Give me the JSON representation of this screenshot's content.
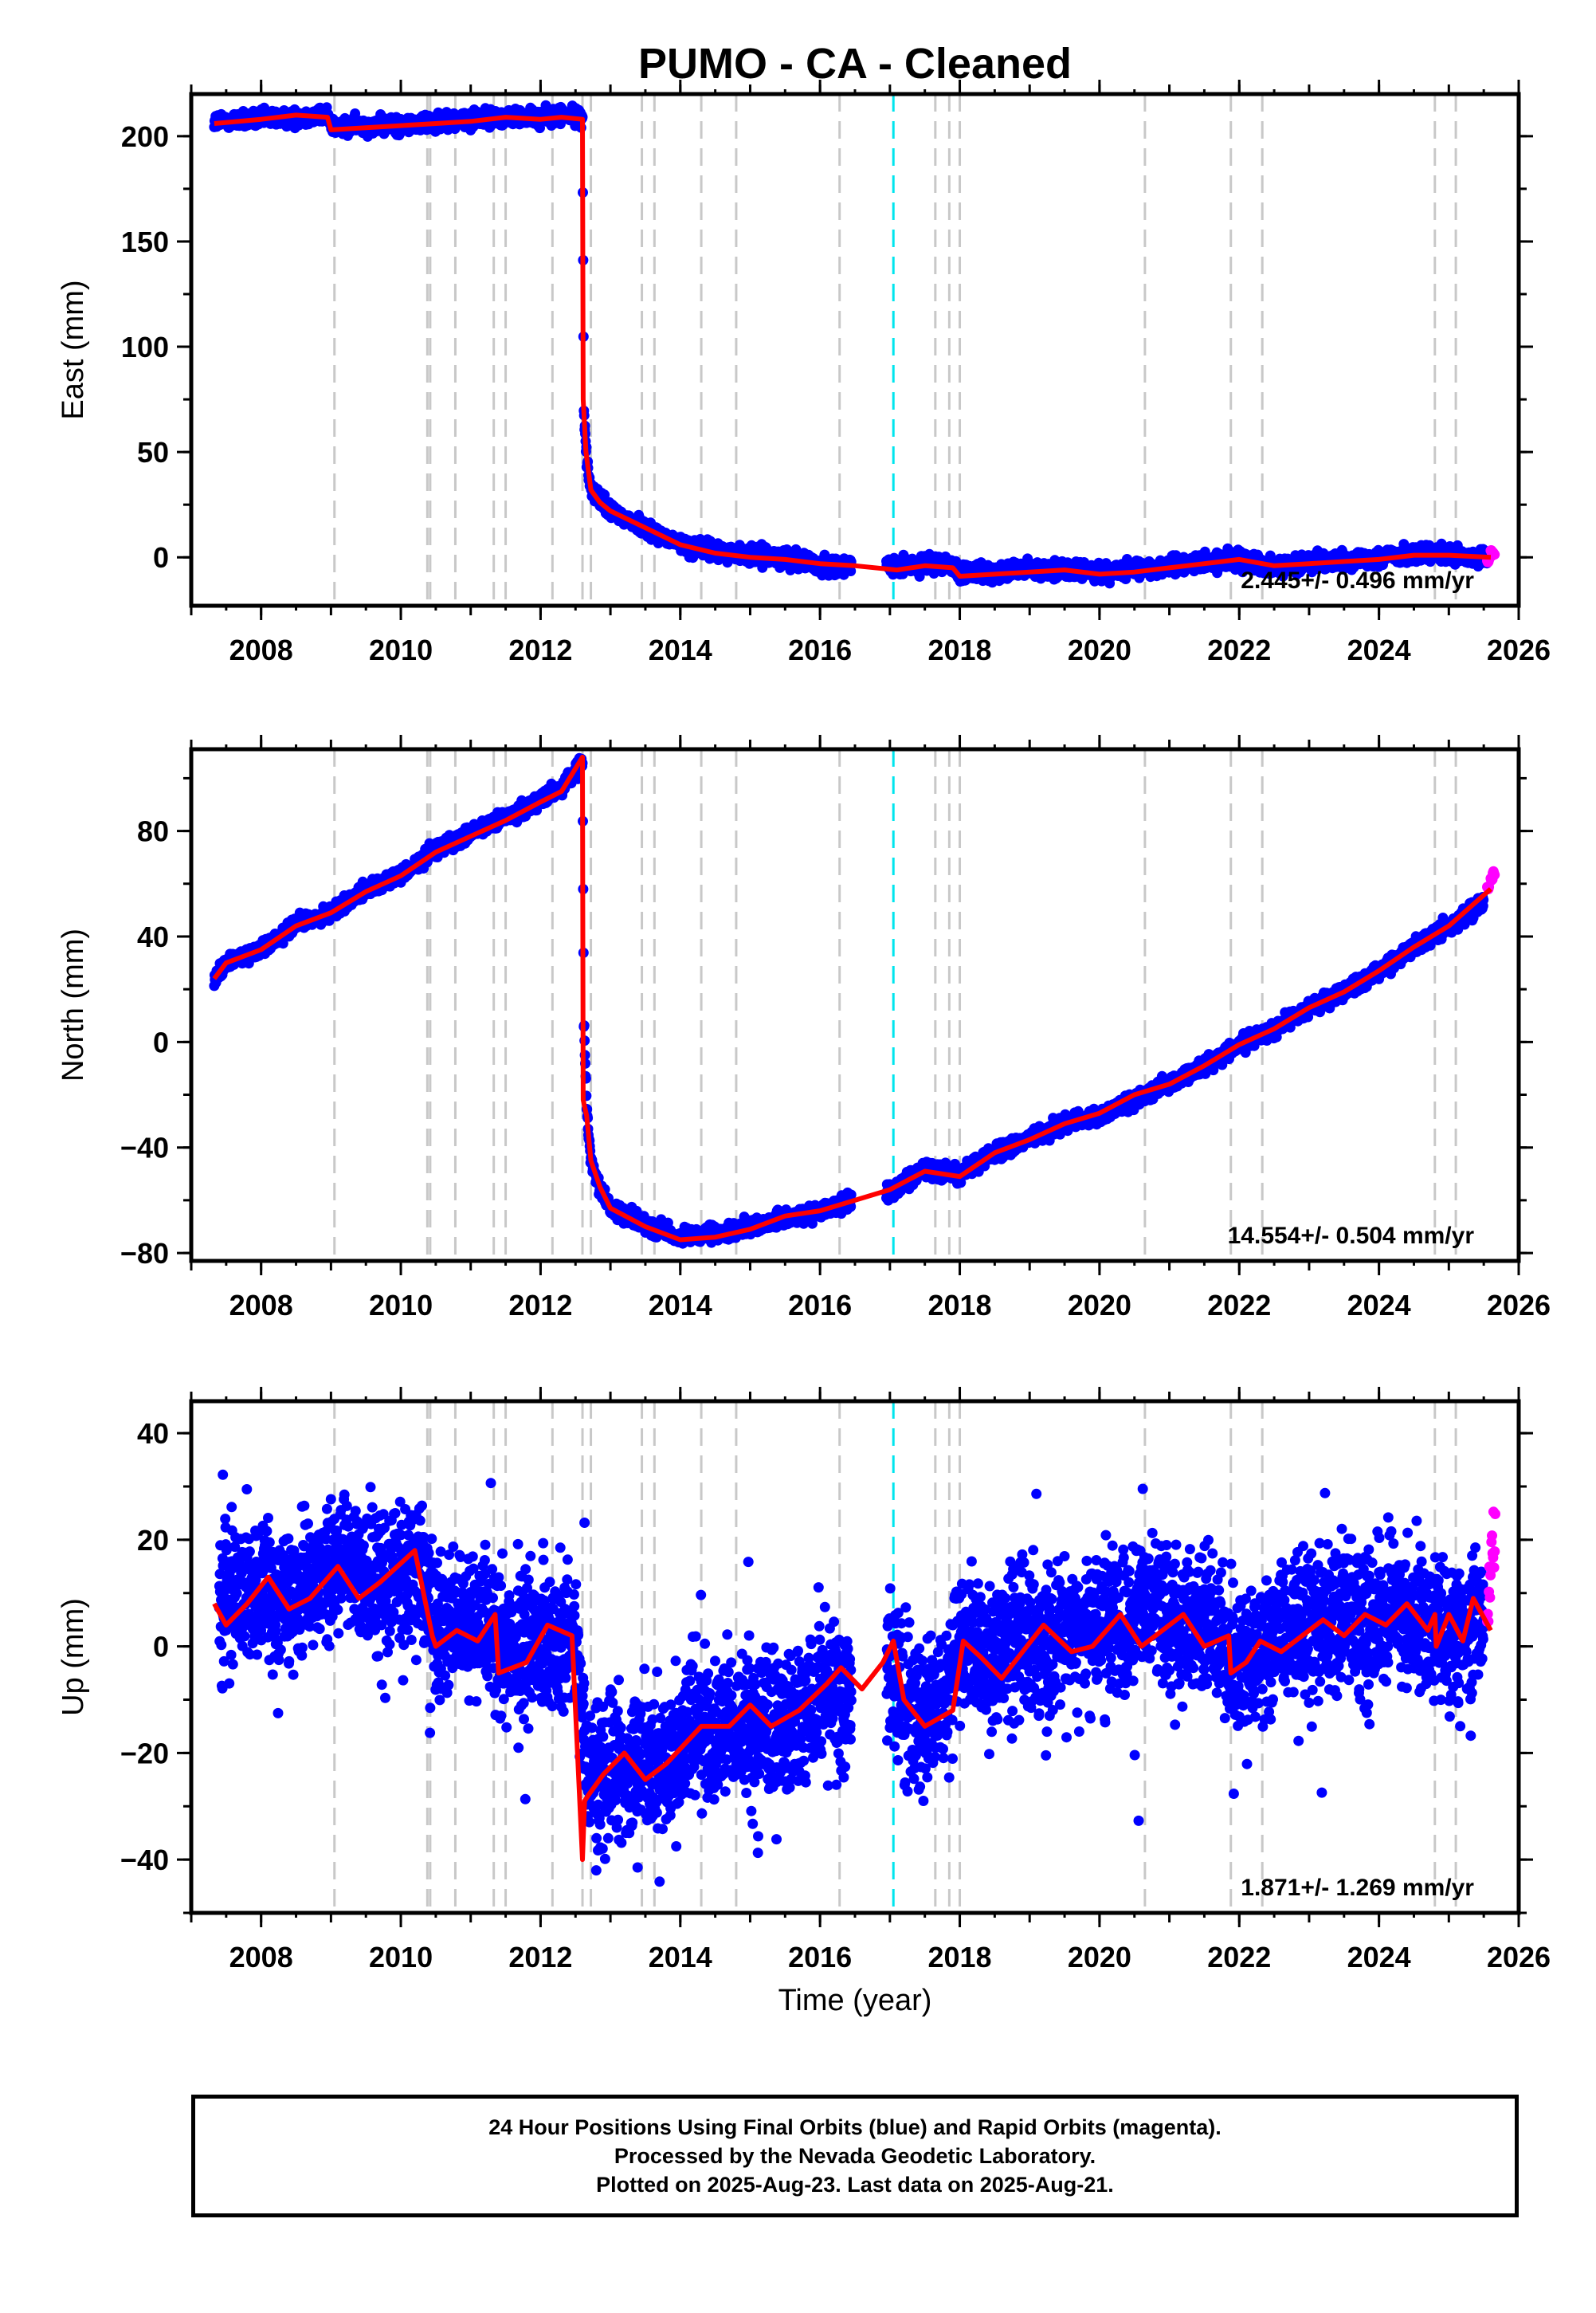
{
  "figure_title": "PUMO  - CA - Cleaned",
  "x_axis_label": "Time (year)",
  "caption": {
    "lines": [
      "24 Hour Positions Using Final Orbits (blue) and Rapid Orbits (magenta).",
      "Processed by the Nevada Geodetic Laboratory.",
      "Plotted on 2025-Aug-23. Last data on 2025-Aug-21."
    ]
  },
  "colors": {
    "final_orbits": "#0000ff",
    "rapid_orbits": "#ff00ff",
    "model_fit": "#ff0000",
    "offset_line": "#c8c8c8",
    "special_offset_line": "#00e5ee"
  },
  "chart_data": [
    {
      "type": "scatter",
      "ylabel": "East (mm)",
      "xlim": [
        2007.0,
        2026.0
      ],
      "ylim": [
        -23,
        220
      ],
      "x_ticks": [
        2008,
        2010,
        2012,
        2014,
        2016,
        2018,
        2020,
        2022,
        2024,
        2026
      ],
      "y_ticks": [
        0,
        50,
        100,
        150,
        200
      ],
      "rate_annotation": "2.445+/- 0.496 mm/yr",
      "series": [
        {
          "kind": "final",
          "x": [
            2007.33,
            2008.0,
            2008.5,
            2008.95,
            2009.05,
            2009.5,
            2010.0,
            2010.5,
            2011.0,
            2011.5,
            2012.0,
            2012.3,
            2012.6,
            2012.62,
            2012.66,
            2012.72,
            2012.85,
            2013.0,
            2013.5,
            2014.0,
            2014.5,
            2015.0,
            2015.5,
            2016.0,
            2016.5,
            2017.1,
            2017.5,
            2017.9,
            2018.0,
            2018.5,
            2019.0,
            2019.5,
            2020.0,
            2020.5,
            2021.0,
            2021.5,
            2022.0,
            2022.5,
            2023.0,
            2023.5,
            2024.0,
            2024.5,
            2025.0,
            2025.4,
            2025.55
          ],
          "y": [
            207,
            208,
            209,
            210,
            204,
            205,
            205,
            207,
            208,
            209,
            209,
            210,
            209,
            70,
            45,
            33,
            27,
            22,
            14,
            6,
            3,
            1,
            0,
            -4,
            -4,
            -5,
            -3,
            -4,
            -8,
            -7,
            -6,
            -6,
            -7,
            -6,
            -4,
            -2,
            -1,
            -4,
            -3,
            -1,
            0,
            2,
            1,
            -1,
            0
          ]
        },
        {
          "kind": "rapid",
          "x": [
            2025.55,
            2025.6,
            2025.63
          ],
          "y": [
            -2,
            2,
            3
          ]
        },
        {
          "kind": "model",
          "x": [
            2007.33,
            2008.0,
            2008.5,
            2008.95,
            2009.0,
            2009.5,
            2010.0,
            2010.5,
            2011.0,
            2011.5,
            2012.0,
            2012.3,
            2012.6,
            2012.61,
            2012.65,
            2012.72,
            2012.85,
            2013.0,
            2013.5,
            2014.0,
            2014.5,
            2015.0,
            2015.5,
            2016.0,
            2016.5,
            2017.1,
            2017.5,
            2017.9,
            2018.0,
            2018.5,
            2019.0,
            2019.5,
            2020.0,
            2020.5,
            2021.0,
            2021.5,
            2022.0,
            2022.5,
            2023.0,
            2023.5,
            2024.0,
            2024.5,
            2025.0,
            2025.6
          ],
          "y": [
            206,
            208,
            210,
            209,
            203,
            204,
            205,
            206,
            207,
            209,
            208,
            209,
            208,
            75,
            50,
            32,
            26,
            22,
            14,
            6,
            2,
            0,
            -1,
            -3,
            -4,
            -6,
            -4,
            -5,
            -9,
            -8,
            -7,
            -6,
            -8,
            -7,
            -5,
            -3,
            -1,
            -4,
            -3,
            -2,
            -1,
            1,
            1,
            0
          ]
        }
      ]
    },
    {
      "type": "scatter",
      "ylabel": "North (mm)",
      "xlim": [
        2007.0,
        2026.0
      ],
      "ylim": [
        -83,
        111
      ],
      "x_ticks": [
        2008,
        2010,
        2012,
        2014,
        2016,
        2018,
        2020,
        2022,
        2024,
        2026
      ],
      "y_ticks": [
        -80,
        -40,
        0,
        40,
        80
      ],
      "rate_annotation": "14.554+/- 0.504 mm/yr",
      "series": [
        {
          "kind": "final",
          "x": [
            2007.33,
            2007.5,
            2008.0,
            2008.5,
            2009.0,
            2009.5,
            2010.0,
            2010.5,
            2011.0,
            2011.5,
            2012.0,
            2012.3,
            2012.6,
            2012.62,
            2012.66,
            2012.72,
            2012.85,
            2013.0,
            2013.5,
            2014.0,
            2014.5,
            2015.0,
            2015.5,
            2016.0,
            2016.5,
            2017.0,
            2017.5,
            2018.0,
            2018.5,
            2019.0,
            2019.5,
            2020.0,
            2020.5,
            2021.0,
            2021.5,
            2022.0,
            2022.5,
            2023.0,
            2023.5,
            2024.0,
            2024.5,
            2025.0,
            2025.5
          ],
          "y": [
            23,
            30,
            35,
            45,
            49,
            58,
            63,
            73,
            79,
            85,
            92,
            96,
            106,
            8,
            -25,
            -45,
            -55,
            -63,
            -69,
            -74,
            -73,
            -70,
            -67,
            -64,
            -60,
            -57,
            -48,
            -50,
            -42,
            -37,
            -31,
            -28,
            -22,
            -16,
            -9,
            -1,
            5,
            13,
            19,
            27,
            36,
            44,
            53
          ]
        },
        {
          "kind": "rapid",
          "x": [
            2025.55,
            2025.6,
            2025.63
          ],
          "y": [
            58,
            62,
            64
          ]
        },
        {
          "kind": "model",
          "x": [
            2007.33,
            2007.5,
            2008.0,
            2008.5,
            2009.0,
            2009.5,
            2010.0,
            2010.5,
            2011.0,
            2011.5,
            2012.0,
            2012.3,
            2012.6,
            2012.61,
            2012.66,
            2012.72,
            2012.85,
            2013.0,
            2013.5,
            2014.0,
            2014.5,
            2015.0,
            2015.5,
            2016.0,
            2016.5,
            2017.0,
            2017.5,
            2018.0,
            2018.5,
            2019.0,
            2019.5,
            2020.0,
            2020.5,
            2021.0,
            2021.5,
            2022.0,
            2022.5,
            2023.0,
            2023.5,
            2024.0,
            2024.5,
            2025.0,
            2025.6
          ],
          "y": [
            24,
            30,
            35,
            44,
            49,
            57,
            63,
            72,
            78,
            84,
            91,
            95,
            108,
            -22,
            -28,
            -45,
            -55,
            -63,
            -70,
            -75,
            -74,
            -71,
            -66,
            -64,
            -60,
            -56,
            -49,
            -51,
            -42,
            -37,
            -31,
            -27,
            -20,
            -16,
            -9,
            -1,
            5,
            13,
            19,
            27,
            36,
            44,
            58
          ]
        }
      ]
    },
    {
      "type": "scatter",
      "ylabel": "Up (mm)",
      "xlim": [
        2007.0,
        2026.0
      ],
      "ylim": [
        -50,
        46
      ],
      "x_ticks": [
        2008,
        2010,
        2012,
        2014,
        2016,
        2018,
        2020,
        2022,
        2024,
        2026
      ],
      "y_ticks": [
        -40,
        -20,
        0,
        20,
        40
      ],
      "rate_annotation": "1.871+/- 1.269 mm/yr",
      "series": [
        {
          "kind": "final",
          "x": [
            2007.4,
            2007.8,
            2008.2,
            2008.6,
            2009.2,
            2009.6,
            2010.0,
            2010.3,
            2010.5,
            2010.9,
            2011.3,
            2011.7,
            2012.1,
            2012.5,
            2012.7,
            2013.0,
            2013.4,
            2013.8,
            2014.2,
            2014.6,
            2015.0,
            2015.5,
            2016.0,
            2016.4,
            2016.9,
            2017.3,
            2017.6,
            2018.0,
            2018.4,
            2018.8,
            2019.2,
            2019.6,
            2020.0,
            2020.4,
            2020.7,
            2021.1,
            2021.5,
            2021.9,
            2022.3,
            2022.7,
            2023.1,
            2023.5,
            2023.9,
            2024.3,
            2024.7,
            2025.1,
            2025.5
          ],
          "y": [
            9,
            12,
            8,
            10,
            16,
            11,
            14,
            13,
            2,
            5,
            4,
            -1,
            2,
            0,
            -27,
            -22,
            -24,
            -21,
            -15,
            -17,
            -14,
            -16,
            -8,
            -9,
            -3,
            -12,
            -14,
            0,
            -4,
            3,
            -1,
            2,
            5,
            3,
            9,
            4,
            5,
            -3,
            -1,
            2,
            3,
            6,
            4,
            7,
            3,
            2,
            6
          ]
        },
        {
          "kind": "rapid",
          "x": [
            2025.55,
            2025.58,
            2025.61,
            2025.64
          ],
          "y": [
            6,
            12,
            18,
            22
          ]
        },
        {
          "kind": "model",
          "x": [
            2007.33,
            2007.5,
            2007.8,
            2008.1,
            2008.4,
            2008.7,
            2009.1,
            2009.4,
            2009.7,
            2010.2,
            2010.45,
            2010.5,
            2010.8,
            2011.1,
            2011.35,
            2011.4,
            2011.8,
            2012.1,
            2012.45,
            2012.6,
            2012.63,
            2012.68,
            2012.9,
            2013.2,
            2013.5,
            2013.8,
            2014.3,
            2014.7,
            2015.0,
            2015.3,
            2015.7,
            2016.1,
            2016.3,
            2016.6,
            2016.9,
            2017.05,
            2017.2,
            2017.5,
            2017.9,
            2018.05,
            2018.3,
            2018.6,
            2018.9,
            2019.2,
            2019.6,
            2019.9,
            2020.3,
            2020.6,
            2020.9,
            2021.2,
            2021.5,
            2021.85,
            2021.88,
            2022.1,
            2022.3,
            2022.6,
            2022.9,
            2023.2,
            2023.5,
            2023.8,
            2024.1,
            2024.4,
            2024.7,
            2024.8,
            2024.82,
            2025.0,
            2025.2,
            2025.35,
            2025.6
          ],
          "y": [
            8,
            4,
            8,
            13,
            7,
            9,
            15,
            9,
            12,
            18,
            2,
            0,
            3,
            1,
            6,
            -5,
            -3,
            4,
            2,
            -40,
            -29,
            -28,
            -24,
            -20,
            -25,
            -22,
            -15,
            -15,
            -11,
            -15,
            -12,
            -7,
            -4,
            -8,
            -3,
            1,
            -10,
            -15,
            -12,
            1,
            -2,
            -6,
            -1,
            4,
            -1,
            0,
            6,
            0,
            3,
            6,
            0,
            2,
            -5,
            -3,
            1,
            -1,
            2,
            5,
            2,
            6,
            4,
            8,
            3,
            6,
            0,
            6,
            1,
            9,
            3
          ]
        }
      ]
    }
  ]
}
